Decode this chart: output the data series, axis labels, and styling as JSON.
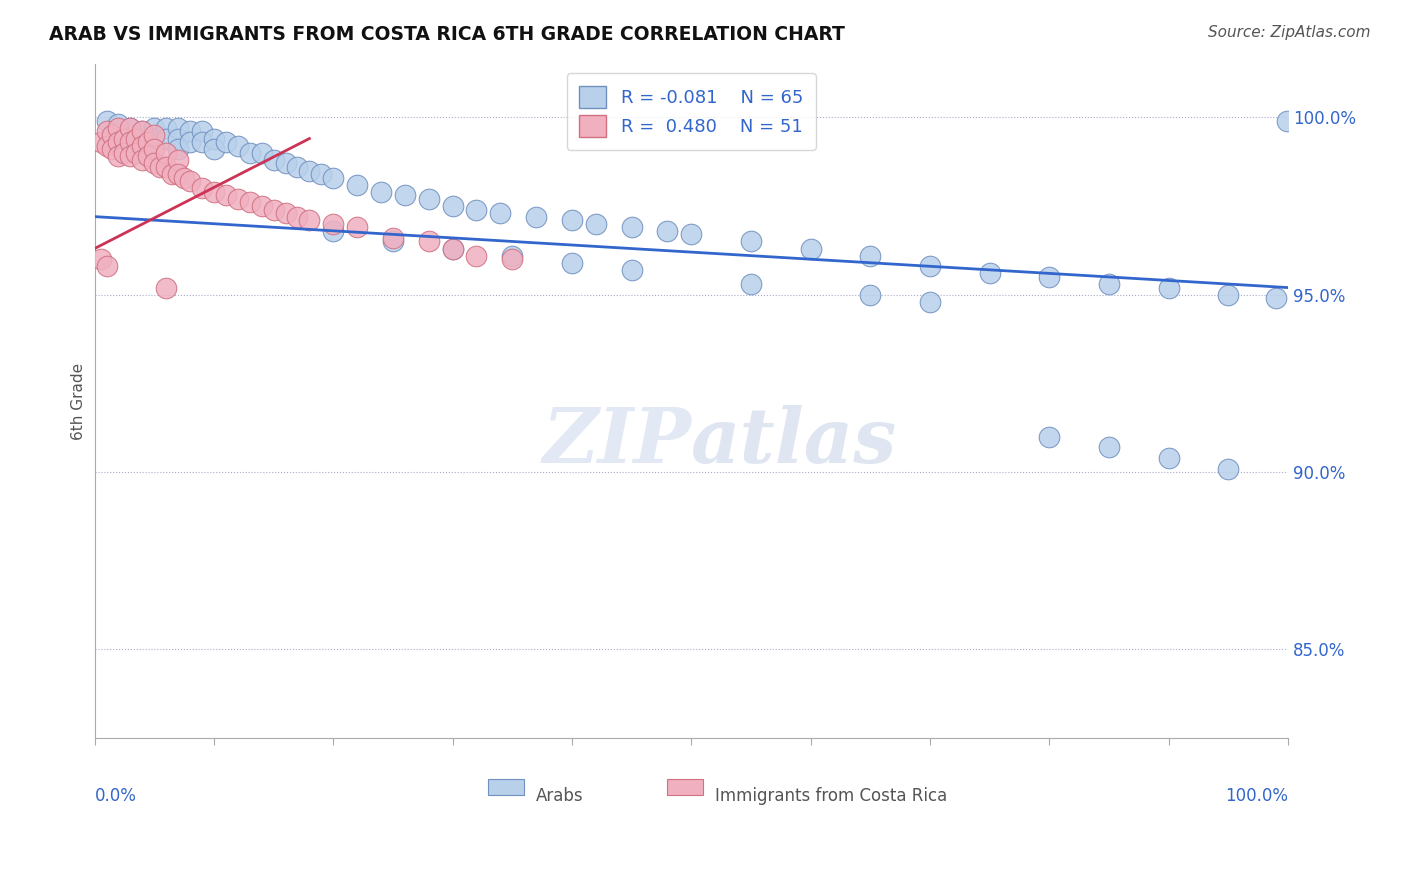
{
  "title": "ARAB VS IMMIGRANTS FROM COSTA RICA 6TH GRADE CORRELATION CHART",
  "source": "Source: ZipAtlas.com",
  "ylabel": "6th Grade",
  "r_blue": -0.081,
  "n_blue": 65,
  "r_pink": 0.48,
  "n_pink": 51,
  "blue_color": "#b8d0ea",
  "pink_color": "#f0b0c0",
  "blue_edge_color": "#7090c0",
  "pink_edge_color": "#d07080",
  "blue_line_color": "#3366cc",
  "pink_line_color": "#cc3355",
  "ytick_labels": [
    "100.0%",
    "95.0%",
    "90.0%",
    "85.0%"
  ],
  "ytick_values": [
    1.0,
    0.95,
    0.9,
    0.85
  ],
  "xlim": [
    0.0,
    1.0
  ],
  "ylim": [
    0.825,
    1.015
  ],
  "blue_line_x": [
    0.0,
    1.0
  ],
  "blue_line_y": [
    0.972,
    0.952
  ],
  "pink_line_x": [
    0.0,
    0.18
  ],
  "pink_line_y": [
    0.963,
    0.994
  ],
  "blue_x": [
    0.01,
    0.02,
    0.03,
    0.04,
    0.04,
    0.05,
    0.05,
    0.06,
    0.06,
    0.07,
    0.07,
    0.07,
    0.08,
    0.08,
    0.09,
    0.09,
    0.1,
    0.1,
    0.11,
    0.12,
    0.13,
    0.14,
    0.15,
    0.16,
    0.17,
    0.18,
    0.19,
    0.2,
    0.22,
    0.24,
    0.26,
    0.28,
    0.3,
    0.32,
    0.34,
    0.37,
    0.4,
    0.42,
    0.45,
    0.48,
    0.5,
    0.55,
    0.6,
    0.65,
    0.7,
    0.75,
    0.8,
    0.85,
    0.9,
    0.95,
    0.99,
    0.2,
    0.25,
    0.3,
    0.35,
    0.4,
    0.45,
    0.55,
    0.65,
    0.7,
    0.8,
    0.85,
    0.9,
    0.95,
    0.999
  ],
  "blue_y": [
    0.999,
    0.998,
    0.997,
    0.996,
    0.993,
    0.997,
    0.994,
    0.997,
    0.994,
    0.997,
    0.994,
    0.991,
    0.996,
    0.993,
    0.996,
    0.993,
    0.994,
    0.991,
    0.993,
    0.992,
    0.99,
    0.99,
    0.988,
    0.987,
    0.986,
    0.985,
    0.984,
    0.983,
    0.981,
    0.979,
    0.978,
    0.977,
    0.975,
    0.974,
    0.973,
    0.972,
    0.971,
    0.97,
    0.969,
    0.968,
    0.967,
    0.965,
    0.963,
    0.961,
    0.958,
    0.956,
    0.955,
    0.953,
    0.952,
    0.95,
    0.949,
    0.968,
    0.965,
    0.963,
    0.961,
    0.959,
    0.957,
    0.953,
    0.95,
    0.948,
    0.91,
    0.907,
    0.904,
    0.901,
    0.999
  ],
  "pink_x": [
    0.005,
    0.01,
    0.01,
    0.015,
    0.015,
    0.02,
    0.02,
    0.02,
    0.025,
    0.025,
    0.03,
    0.03,
    0.03,
    0.035,
    0.035,
    0.04,
    0.04,
    0.04,
    0.045,
    0.045,
    0.05,
    0.05,
    0.05,
    0.055,
    0.06,
    0.06,
    0.065,
    0.07,
    0.07,
    0.075,
    0.08,
    0.09,
    0.1,
    0.11,
    0.12,
    0.13,
    0.14,
    0.15,
    0.16,
    0.17,
    0.18,
    0.2,
    0.22,
    0.25,
    0.28,
    0.3,
    0.32,
    0.35,
    0.005,
    0.01,
    0.06
  ],
  "pink_y": [
    0.993,
    0.996,
    0.992,
    0.995,
    0.991,
    0.997,
    0.993,
    0.989,
    0.994,
    0.99,
    0.997,
    0.993,
    0.989,
    0.994,
    0.99,
    0.996,
    0.992,
    0.988,
    0.993,
    0.989,
    0.995,
    0.991,
    0.987,
    0.986,
    0.99,
    0.986,
    0.984,
    0.988,
    0.984,
    0.983,
    0.982,
    0.98,
    0.979,
    0.978,
    0.977,
    0.976,
    0.975,
    0.974,
    0.973,
    0.972,
    0.971,
    0.97,
    0.969,
    0.966,
    0.965,
    0.963,
    0.961,
    0.96,
    0.96,
    0.958,
    0.952
  ]
}
